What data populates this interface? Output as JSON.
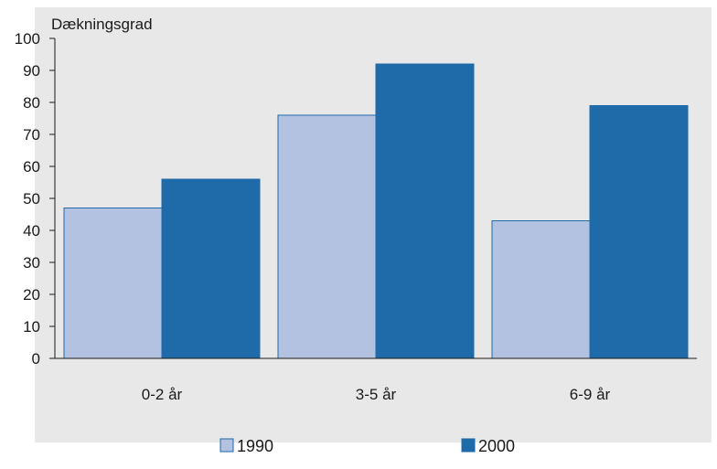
{
  "chart_data": {
    "type": "bar",
    "ylabel": "Dækningsgrad",
    "categories": [
      "0-2 år",
      "3-5 år",
      "6-9 år"
    ],
    "series": [
      {
        "name": "1990",
        "values": [
          47,
          76,
          43
        ],
        "color": "#b3c2e1"
      },
      {
        "name": "2000",
        "values": [
          56,
          92,
          79
        ],
        "color": "#1f6aa8"
      }
    ],
    "ylim": [
      0,
      100
    ],
    "yticks": [
      0,
      10,
      20,
      30,
      40,
      50,
      60,
      70,
      80,
      90,
      100
    ],
    "grid": false,
    "legend_position": "bottom",
    "plot_background": "#e8e8e8",
    "bar_border": "#1f6aa8"
  }
}
